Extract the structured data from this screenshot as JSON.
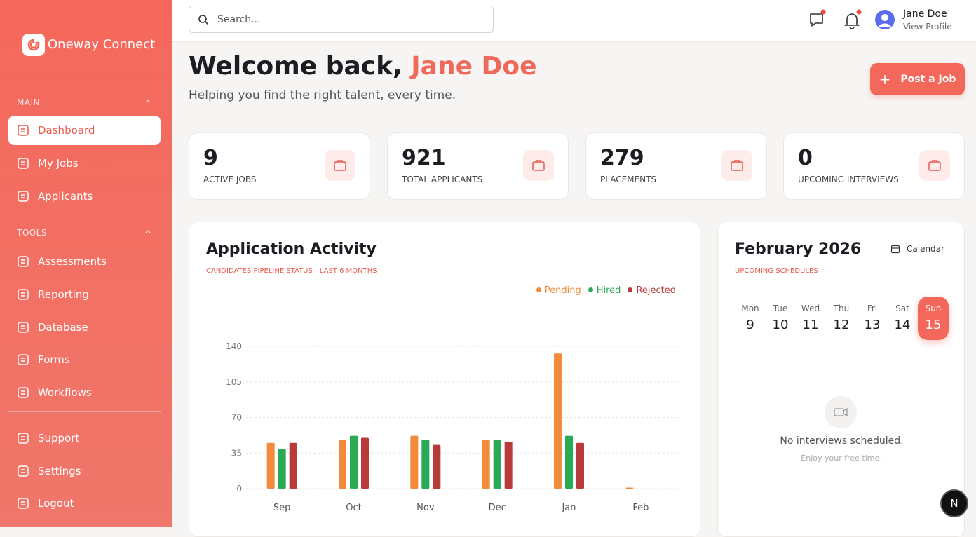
{
  "sidebar": {
    "brand": "Oneway Connect",
    "sections": [
      {
        "title": "MAIN",
        "items": [
          "Dashboard",
          "My Jobs",
          "Applicants"
        ]
      },
      {
        "title": "TOOLS",
        "items": [
          "Assessments",
          "Reporting",
          "Database",
          "Forms",
          "Workflows"
        ]
      }
    ],
    "footer_items": [
      "Support",
      "Settings",
      "Logout"
    ]
  },
  "header": {
    "search_placeholder": "Search...",
    "user_name": "Jane Doe",
    "user_link": "View Profile"
  },
  "welcome": {
    "greeting": "Welcome back,",
    "name": "Jane Doe",
    "subtitle": "Helping you find the right talent, every time.",
    "button": "Post a Job"
  },
  "stats": [
    {
      "value": 9,
      "label": "ACTIVE JOBS"
    },
    {
      "value": 921,
      "label": "TOTAL APPLICANTS"
    },
    {
      "value": 279,
      "label": "PLACEMENTS"
    },
    {
      "value": 0,
      "label": "UPCOMING INTERVIEWS"
    }
  ],
  "chart_data": {
    "type": "bar",
    "title": "Application Activity",
    "subtitle": "CANDIDATES PIPELINE STATUS - LAST 6 MONTHS",
    "categories": [
      "Sep",
      "Oct",
      "Nov",
      "Dec",
      "Jan",
      "Feb"
    ],
    "series": [
      {
        "name": "Pending",
        "color": "#f28c3c",
        "values": [
          45,
          48,
          52,
          48,
          133,
          1
        ]
      },
      {
        "name": "Hired",
        "color": "#2aaa55",
        "values": [
          39,
          52,
          48,
          48,
          52,
          0
        ]
      },
      {
        "name": "Rejected",
        "color": "#b83a3a",
        "values": [
          45,
          50,
          43,
          46,
          45,
          0
        ]
      }
    ],
    "ylim": [
      0,
      140
    ],
    "yticks": [
      0,
      35,
      70,
      105,
      140
    ],
    "grid": true,
    "legend": "top-right"
  },
  "calendar": {
    "title": "February 2026",
    "link": "Calendar",
    "subtitle": "UPCOMING SCHEDULES",
    "days": [
      {
        "weekday": "Mon",
        "date": 9
      },
      {
        "weekday": "Tue",
        "date": 10
      },
      {
        "weekday": "Wed",
        "date": 11
      },
      {
        "weekday": "Thu",
        "date": 12
      },
      {
        "weekday": "Fri",
        "date": 13
      },
      {
        "weekday": "Sat",
        "date": 14
      },
      {
        "weekday": "Sun",
        "date": 15
      }
    ],
    "empty_title": "No interviews scheduled.",
    "empty_subtitle": "Enjoy your free time!"
  },
  "badge": "N"
}
